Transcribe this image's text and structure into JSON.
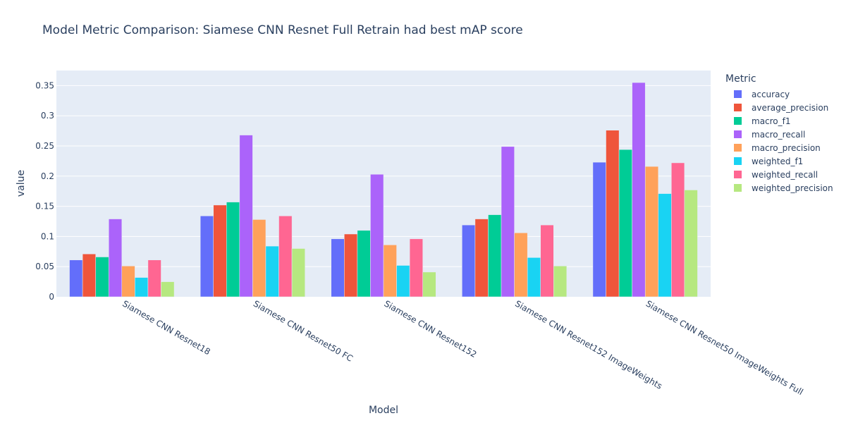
{
  "chart_data": {
    "type": "bar",
    "title": "Model Metric Comparison: Siamese CNN Resnet Full Retrain had best mAP score",
    "xlabel": "Model",
    "ylabel": "value",
    "ylim": [
      0,
      0.375
    ],
    "yticks": [
      0,
      0.05,
      0.1,
      0.15,
      0.2,
      0.25,
      0.3,
      0.35
    ],
    "ytick_labels": [
      "0",
      "0.05",
      "0.1",
      "0.15",
      "0.2",
      "0.25",
      "0.3",
      "0.35"
    ],
    "legend_title": "Metric",
    "legend_position": "right",
    "grid": true,
    "categories": [
      "Siamese CNN Resnet18",
      "Siamese CNN Resnet50 FC",
      "Siamese CNN Resnet152",
      "Siamese CNN Resnet152 ImageWeights",
      "Siamese CNN Resnet50 ImageWeights Full"
    ],
    "series": [
      {
        "name": "accuracy",
        "color": "#636efa",
        "values": [
          0.061,
          0.134,
          0.096,
          0.119,
          0.223
        ]
      },
      {
        "name": "average_precision",
        "color": "#ef553b",
        "values": [
          0.071,
          0.152,
          0.104,
          0.129,
          0.276
        ]
      },
      {
        "name": "macro_f1",
        "color": "#00cc96",
        "values": [
          0.066,
          0.157,
          0.11,
          0.136,
          0.244
        ]
      },
      {
        "name": "macro_recall",
        "color": "#ab63fa",
        "values": [
          0.129,
          0.268,
          0.203,
          0.249,
          0.355
        ]
      },
      {
        "name": "macro_precision",
        "color": "#ffa15a",
        "values": [
          0.051,
          0.128,
          0.086,
          0.106,
          0.216
        ]
      },
      {
        "name": "weighted_f1",
        "color": "#19d3f3",
        "values": [
          0.032,
          0.084,
          0.052,
          0.065,
          0.171
        ]
      },
      {
        "name": "weighted_recall",
        "color": "#ff6692",
        "values": [
          0.061,
          0.134,
          0.096,
          0.119,
          0.222
        ]
      },
      {
        "name": "weighted_precision",
        "color": "#b6e880",
        "values": [
          0.025,
          0.08,
          0.041,
          0.051,
          0.177
        ]
      }
    ],
    "colors": {
      "plot_background": "#e5ecf6",
      "gridline": "#ffffff",
      "text": "#2a3f5f"
    }
  }
}
